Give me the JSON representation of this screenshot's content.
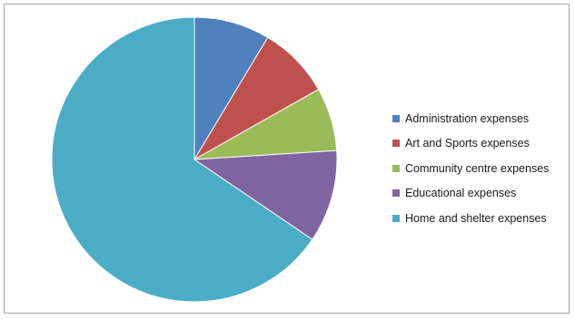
{
  "chart_data": {
    "type": "pie",
    "title": "",
    "start_angle_deg": 0,
    "direction": "clockwise",
    "legend_position": "right",
    "slices": [
      {
        "label": "Administration expenses",
        "value": 8.6,
        "color": "#4f81bd"
      },
      {
        "label": "Art and Sports expenses",
        "value": 8.2,
        "color": "#c0504d"
      },
      {
        "label": "Community centre expenses",
        "value": 7.2,
        "color": "#9bbb59"
      },
      {
        "label": "Educational expenses",
        "value": 10.5,
        "color": "#8064a2"
      },
      {
        "label": "Home and shelter expenses",
        "value": 65.5,
        "color": "#4bacc6"
      }
    ]
  }
}
